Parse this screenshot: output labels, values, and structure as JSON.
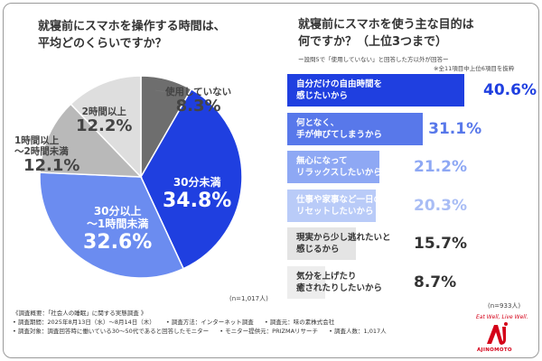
{
  "left": {
    "title_line1": "就寝前にスマホを操作する時間は、",
    "title_line2": "平均どのくらいですか？",
    "n": "(n=1,017人)"
  },
  "right": {
    "title_line1": "就寝前にスマホを使う主な目的は",
    "title_line2": "何ですか？（上位3つまで）",
    "note1": "ー設問5で「使用していない」と回答した方以外が回答ー",
    "note2": "※全11項目中上位6項目を抜粋",
    "n": "(n=933人)"
  },
  "chart_data": [
    {
      "type": "pie",
      "slices": [
        {
          "label": "使用していない",
          "value": 8.3,
          "pct": "8.3%",
          "color": "#6e6e6e"
        },
        {
          "label": "30分未満",
          "value": 34.8,
          "pct": "34.8%",
          "color": "#1f3fe0"
        },
        {
          "label": "30分以上\n～1時間未満",
          "value": 32.6,
          "pct": "32.6%",
          "color": "#6b8cf0"
        },
        {
          "label": "1時間以上\n～2時間未満",
          "value": 12.1,
          "pct": "12.1%",
          "color": "#b9b9b9"
        },
        {
          "label": "2時間以上",
          "value": 12.2,
          "pct": "12.2%",
          "color": "#dedede"
        }
      ]
    },
    {
      "type": "bar",
      "orientation": "horizontal",
      "xlim": [
        0,
        40.6
      ],
      "bars": [
        {
          "label": "自分だけの自由時間を\n感じたいから",
          "value": 40.6,
          "display": "40.6%",
          "fill": "#1f3fe0",
          "text": "#ffffff",
          "value_color": "#1f3fe0"
        },
        {
          "label": "何となく、\n手が伸びてしまうから",
          "value": 31.1,
          "display": "31.1%",
          "fill": "#5878ea",
          "text": "#ffffff",
          "value_color": "#5878ea"
        },
        {
          "label": "無心になって\nリラックスしたいから",
          "value": 21.2,
          "display": "21.2%",
          "fill": "#8ea8f4",
          "text": "#ffffff",
          "value_color": "#8ea8f4"
        },
        {
          "label": "仕事や家事など一日のストレスを\nリセットしたいから",
          "value": 20.3,
          "display": "20.3%",
          "fill": "#b9cbf8",
          "text": "#ffffff",
          "value_color": "#a9bdf5"
        },
        {
          "label": "現実から少し逃れたいと\n感じるから",
          "value": 15.7,
          "display": "15.7%",
          "fill": "#e4e4e4",
          "text": "#333333",
          "value_color": "#333333"
        },
        {
          "label": "気分を上げたり\n癒されたりしたいから",
          "value": 8.7,
          "display": "8.7%",
          "fill": "#ededed",
          "text": "#333333",
          "value_color": "#333333"
        }
      ]
    }
  ],
  "footer": {
    "line1": "《調査概要：「社会人の睡眠」に関する実態調査 》",
    "period": "• 調査期間：2025年8月13日（水）～8月14日（木）",
    "method": "• 調査方法：インターネット調査",
    "source": "• 調査元：味の素株式会社",
    "target": "• 調査対象：調査回答時に働いている30～50代であると回答したモニター",
    "provider": "• モニター提供元：PRIZMAリサーチ",
    "count": "• 調査人数：1,017人"
  },
  "logo": {
    "tagline": "Eat Well, Live Well.",
    "name": "AJINOMOTO",
    "color": "#d40018"
  }
}
